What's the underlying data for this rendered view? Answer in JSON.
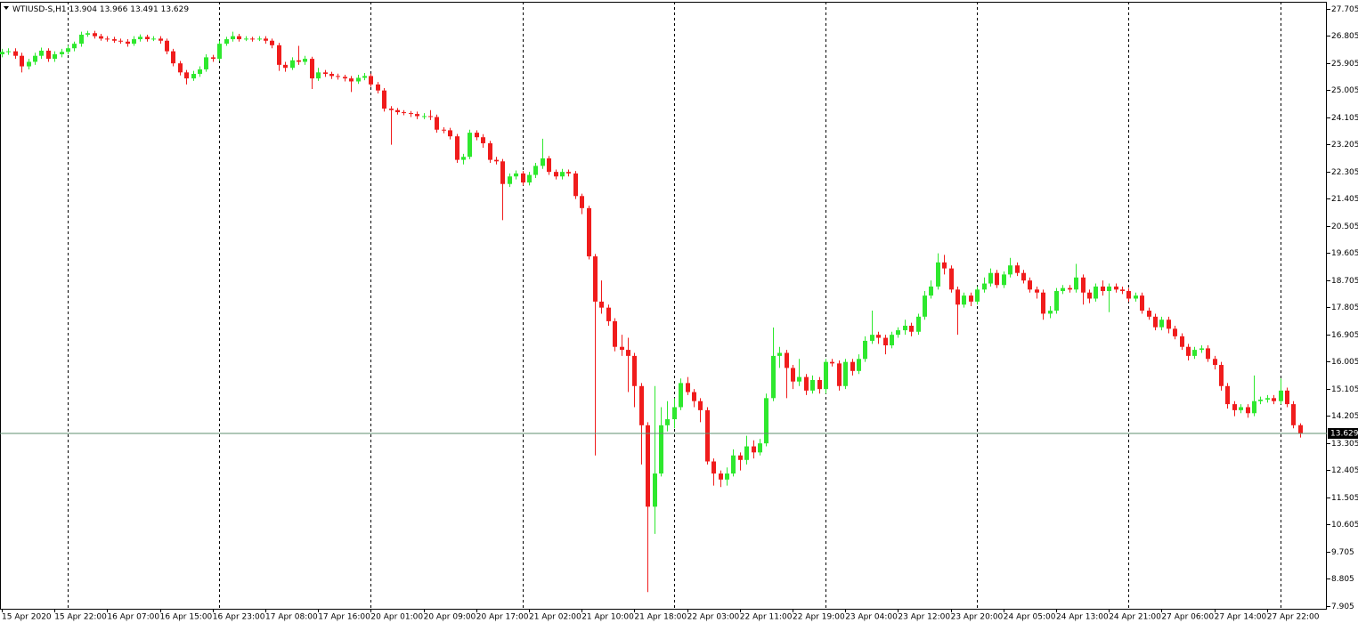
{
  "chart_data": {
    "type": "candlestick",
    "symbol": "WTIUSD-S,H1",
    "up_color": "#2ee82e",
    "down_color": "#f01c1c",
    "grid": false,
    "ylim": [
      7.816,
      27.941
    ],
    "yticks": [
      27.705,
      26.805,
      25.905,
      25.005,
      24.105,
      23.205,
      22.305,
      21.405,
      20.505,
      19.605,
      18.705,
      17.805,
      16.905,
      16.005,
      15.105,
      14.205,
      13.305,
      12.405,
      11.505,
      10.605,
      9.705,
      8.805,
      7.905
    ],
    "categories": [
      "15 Apr 2020",
      null,
      null,
      null,
      null,
      null,
      null,
      null,
      "15 Apr 22:00",
      null,
      null,
      null,
      null,
      null,
      null,
      null,
      "16 Apr 07:00",
      null,
      null,
      null,
      null,
      null,
      null,
      null,
      "16 Apr 15:00",
      null,
      null,
      null,
      null,
      null,
      null,
      null,
      "16 Apr 23:00",
      null,
      null,
      null,
      null,
      null,
      null,
      null,
      "17 Apr 08:00",
      null,
      null,
      null,
      null,
      null,
      null,
      null,
      "17 Apr 16:00",
      null,
      null,
      null,
      null,
      null,
      null,
      null,
      "20 Apr 01:00",
      null,
      null,
      null,
      null,
      null,
      null,
      null,
      "20 Apr 09:00",
      null,
      null,
      null,
      null,
      null,
      null,
      null,
      "20 Apr 17:00",
      null,
      null,
      null,
      null,
      null,
      null,
      null,
      "21 Apr 02:00",
      null,
      null,
      null,
      null,
      null,
      null,
      null,
      "21 Apr 10:00",
      null,
      null,
      null,
      null,
      null,
      null,
      null,
      "21 Apr 18:00",
      null,
      null,
      null,
      null,
      null,
      null,
      null,
      "22 Apr 03:00",
      null,
      null,
      null,
      null,
      null,
      null,
      null,
      "22 Apr 11:00",
      null,
      null,
      null,
      null,
      null,
      null,
      null,
      "22 Apr 19:00",
      null,
      null,
      null,
      null,
      null,
      null,
      null,
      "23 Apr 04:00",
      null,
      null,
      null,
      null,
      null,
      null,
      null,
      "23 Apr 12:00",
      null,
      null,
      null,
      null,
      null,
      null,
      null,
      "23 Apr 20:00",
      null,
      null,
      null,
      null,
      null,
      null,
      null,
      "24 Apr 05:00",
      null,
      null,
      null,
      null,
      null,
      null,
      null,
      "24 Apr 13:00",
      null,
      null,
      null,
      null,
      null,
      null,
      null,
      "24 Apr 21:00",
      null,
      null,
      null,
      null,
      null,
      null,
      null,
      "27 Apr 06:00",
      null,
      null,
      null,
      null,
      null,
      null,
      null,
      "27 Apr 14:00",
      null,
      null,
      null,
      null,
      null,
      null,
      null,
      "27 Apr 22:00",
      null,
      null,
      null,
      null,
      null
    ],
    "open": [
      26.2,
      26.28,
      26.3,
      26.15,
      25.8,
      25.95,
      26.15,
      26.32,
      26.05,
      26.2,
      26.28,
      26.4,
      26.55,
      26.85,
      26.9,
      26.8,
      26.72,
      26.7,
      26.65,
      26.62,
      26.55,
      26.7,
      26.78,
      26.7,
      26.72,
      26.65,
      26.3,
      25.9,
      25.6,
      25.4,
      25.55,
      25.7,
      26.1,
      26.05,
      26.55,
      26.7,
      26.8,
      26.7,
      26.72,
      26.7,
      26.72,
      26.65,
      26.5,
      25.85,
      25.75,
      26.0,
      25.95,
      26.05,
      25.4,
      25.6,
      25.55,
      25.48,
      25.45,
      25.4,
      25.3,
      25.42,
      25.48,
      25.2,
      25.0,
      24.4,
      24.35,
      24.28,
      24.25,
      24.22,
      24.15,
      24.15,
      24.12,
      23.7,
      23.68,
      23.48,
      22.7,
      22.8,
      23.6,
      23.45,
      23.25,
      22.7,
      22.65,
      21.9,
      22.15,
      22.25,
      21.95,
      22.2,
      22.5,
      22.75,
      22.3,
      22.15,
      22.3,
      22.25,
      21.5,
      21.1,
      19.5,
      18.0,
      17.8,
      17.35,
      16.5,
      16.4,
      16.2,
      15.2,
      13.9,
      11.2,
      12.3,
      13.9,
      14.1,
      14.5,
      15.3,
      15.0,
      14.7,
      14.4,
      12.7,
      12.3,
      12.1,
      12.3,
      12.9,
      12.75,
      13.2,
      13.0,
      13.3,
      14.8,
      16.2,
      16.3,
      15.8,
      15.35,
      15.5,
      15.05,
      15.4,
      15.1,
      16.0,
      15.95,
      15.2,
      16.0,
      15.7,
      16.1,
      16.7,
      16.9,
      16.8,
      16.55,
      16.9,
      17.05,
      17.2,
      17.0,
      17.5,
      18.2,
      18.5,
      19.3,
      19.1,
      18.4,
      17.9,
      18.2,
      18.0,
      18.4,
      18.6,
      18.95,
      18.55,
      18.9,
      19.2,
      18.95,
      18.7,
      18.4,
      18.3,
      17.6,
      17.7,
      18.35,
      18.45,
      18.4,
      18.8,
      18.3,
      18.1,
      18.5,
      18.35,
      18.5,
      18.4,
      18.35,
      18.1,
      18.2,
      17.7,
      17.5,
      17.15,
      17.4,
      17.1,
      16.85,
      16.5,
      16.2,
      16.4,
      16.45,
      16.1,
      15.9,
      15.2,
      14.6,
      14.4,
      14.5,
      14.3,
      14.7,
      14.75,
      14.8,
      14.7,
      15.05,
      14.6,
      13.904
    ],
    "high": [
      26.38,
      26.4,
      26.4,
      26.25,
      26.05,
      26.25,
      26.42,
      26.4,
      26.3,
      26.38,
      26.5,
      26.62,
      26.95,
      26.98,
      26.98,
      26.88,
      26.8,
      26.78,
      26.72,
      26.7,
      26.8,
      26.86,
      26.85,
      26.8,
      26.8,
      26.72,
      26.38,
      25.98,
      25.68,
      25.65,
      25.8,
      26.2,
      26.18,
      26.65,
      26.78,
      26.95,
      26.88,
      26.8,
      26.78,
      26.8,
      26.8,
      26.72,
      26.58,
      25.95,
      26.1,
      26.48,
      26.15,
      26.12,
      25.75,
      25.68,
      25.62,
      25.56,
      25.52,
      25.48,
      25.52,
      25.58,
      25.56,
      25.28,
      25.08,
      24.48,
      24.42,
      24.35,
      24.32,
      24.3,
      24.25,
      24.35,
      24.2,
      23.78,
      23.76,
      23.56,
      22.9,
      23.7,
      23.68,
      23.55,
      23.33,
      22.8,
      22.73,
      22.25,
      22.35,
      22.33,
      22.3,
      22.6,
      23.4,
      22.83,
      22.38,
      22.4,
      22.38,
      22.33,
      21.58,
      21.18,
      19.58,
      18.7,
      17.9,
      17.45,
      16.9,
      16.8,
      16.3,
      15.3,
      14.0,
      15.2,
      14.5,
      14.7,
      14.8,
      15.45,
      15.5,
      15.1,
      14.8,
      14.5,
      12.8,
      12.4,
      12.5,
      13.1,
      13.0,
      13.55,
      13.4,
      13.45,
      14.95,
      17.14,
      16.5,
      16.4,
      15.9,
      16.1,
      15.6,
      15.55,
      15.5,
      16.1,
      16.1,
      16.05,
      16.1,
      16.1,
      16.25,
      16.85,
      17.7,
      17.0,
      16.9,
      17.0,
      17.15,
      17.4,
      17.3,
      17.6,
      18.35,
      18.7,
      19.6,
      19.55,
      19.2,
      18.5,
      18.3,
      18.3,
      18.5,
      18.8,
      19.1,
      19.05,
      19.0,
      19.45,
      19.3,
      19.05,
      18.8,
      18.5,
      18.4,
      17.85,
      18.45,
      18.55,
      18.55,
      19.25,
      18.9,
      18.4,
      18.6,
      18.7,
      18.6,
      18.6,
      18.5,
      18.45,
      18.3,
      18.3,
      17.8,
      17.6,
      17.5,
      17.5,
      17.2,
      16.95,
      16.6,
      16.5,
      16.55,
      16.55,
      16.2,
      16.0,
      15.3,
      14.7,
      14.6,
      14.6,
      15.55,
      14.85,
      14.9,
      14.9,
      15.45,
      15.15,
      14.7,
      13.966
    ],
    "low": [
      26.1,
      26.18,
      26.05,
      25.6,
      25.7,
      25.85,
      26.05,
      25.95,
      25.95,
      26.1,
      26.2,
      26.3,
      26.45,
      26.78,
      26.72,
      26.65,
      26.62,
      26.58,
      26.55,
      26.45,
      26.48,
      26.62,
      26.62,
      26.64,
      26.55,
      26.2,
      25.8,
      25.5,
      25.2,
      25.32,
      25.45,
      25.62,
      25.95,
      25.98,
      26.48,
      26.62,
      26.62,
      26.64,
      26.62,
      26.64,
      26.55,
      26.4,
      25.65,
      25.62,
      25.68,
      25.85,
      25.85,
      25.05,
      25.32,
      25.45,
      25.38,
      25.36,
      25.3,
      24.95,
      25.22,
      25.34,
      25.12,
      24.9,
      24.3,
      23.2,
      24.2,
      24.18,
      24.12,
      24.05,
      24.05,
      24.02,
      23.6,
      23.58,
      23.38,
      22.6,
      22.55,
      22.72,
      23.35,
      23.1,
      22.6,
      22.55,
      20.7,
      21.8,
      22.05,
      21.85,
      21.85,
      22.1,
      22.4,
      22.2,
      22.05,
      22.05,
      22.15,
      21.4,
      20.9,
      19.4,
      12.9,
      17.6,
      17.2,
      16.35,
      16.2,
      15.0,
      14.5,
      12.6,
      8.37,
      10.3,
      12.2,
      13.7,
      13.8,
      14.4,
      14.9,
      14.5,
      14.0,
      12.6,
      11.9,
      11.85,
      11.9,
      12.2,
      12.4,
      12.6,
      12.8,
      12.9,
      13.2,
      14.7,
      15.8,
      14.8,
      15.1,
      15.2,
      14.9,
      14.95,
      14.95,
      14.95,
      15.85,
      15.05,
      15.1,
      15.55,
      15.6,
      16.0,
      16.6,
      16.6,
      16.25,
      16.45,
      16.8,
      16.9,
      16.85,
      16.9,
      17.4,
      18.1,
      18.4,
      18.9,
      18.3,
      16.9,
      17.8,
      17.85,
      17.9,
      18.3,
      18.5,
      18.45,
      18.45,
      18.8,
      18.85,
      18.6,
      18.3,
      18.1,
      17.4,
      17.45,
      17.6,
      18.25,
      18.3,
      18.3,
      17.9,
      17.95,
      18.0,
      18.2,
      17.65,
      18.3,
      18.25,
      18.0,
      18.0,
      17.6,
      17.4,
      17.05,
      17.05,
      16.95,
      16.75,
      16.4,
      16.05,
      16.1,
      16.3,
      16.0,
      15.75,
      15.05,
      14.45,
      14.2,
      14.3,
      14.15,
      14.2,
      14.6,
      14.65,
      14.6,
      14.6,
      14.5,
      13.8,
      13.491
    ],
    "close": [
      26.28,
      26.3,
      26.15,
      25.8,
      25.95,
      26.15,
      26.32,
      26.05,
      26.2,
      26.28,
      26.4,
      26.55,
      26.85,
      26.9,
      26.8,
      26.72,
      26.7,
      26.65,
      26.62,
      26.55,
      26.7,
      26.78,
      26.7,
      26.72,
      26.65,
      26.3,
      25.9,
      25.6,
      25.4,
      25.55,
      25.7,
      26.1,
      26.05,
      26.55,
      26.7,
      26.8,
      26.7,
      26.72,
      26.7,
      26.72,
      26.65,
      26.5,
      25.85,
      25.75,
      26.0,
      25.95,
      26.05,
      25.4,
      25.6,
      25.55,
      25.48,
      25.45,
      25.4,
      25.3,
      25.42,
      25.48,
      25.2,
      25.0,
      24.4,
      24.35,
      24.28,
      24.25,
      24.22,
      24.15,
      24.15,
      24.12,
      23.7,
      23.68,
      23.48,
      22.7,
      22.8,
      23.6,
      23.45,
      23.25,
      22.7,
      22.65,
      21.9,
      22.15,
      22.25,
      21.95,
      22.2,
      22.5,
      22.75,
      22.3,
      22.15,
      22.3,
      22.25,
      21.5,
      21.1,
      19.5,
      18.0,
      17.8,
      17.35,
      16.5,
      16.4,
      16.2,
      15.2,
      13.9,
      11.2,
      12.3,
      13.9,
      14.1,
      14.5,
      15.3,
      15.0,
      14.7,
      14.4,
      12.7,
      12.3,
      12.1,
      12.3,
      12.9,
      12.75,
      13.2,
      13.0,
      13.3,
      14.8,
      16.2,
      16.3,
      15.8,
      15.35,
      15.5,
      15.05,
      15.4,
      15.1,
      16.0,
      15.95,
      15.2,
      16.0,
      15.7,
      16.1,
      16.7,
      16.9,
      16.8,
      16.55,
      16.9,
      17.05,
      17.2,
      17.0,
      17.5,
      18.2,
      18.5,
      19.3,
      19.1,
      18.4,
      17.9,
      18.2,
      18.0,
      18.4,
      18.6,
      18.95,
      18.55,
      18.9,
      19.2,
      18.95,
      18.7,
      18.4,
      18.3,
      17.6,
      17.7,
      18.35,
      18.45,
      18.4,
      18.8,
      18.3,
      18.1,
      18.5,
      18.35,
      18.5,
      18.4,
      18.35,
      18.1,
      18.2,
      17.7,
      17.5,
      17.15,
      17.4,
      17.1,
      16.85,
      16.5,
      16.2,
      16.4,
      16.45,
      16.1,
      15.9,
      15.2,
      14.6,
      14.4,
      14.5,
      14.3,
      14.7,
      14.75,
      14.8,
      14.7,
      15.05,
      14.6,
      13.9,
      13.629
    ]
  }
}
